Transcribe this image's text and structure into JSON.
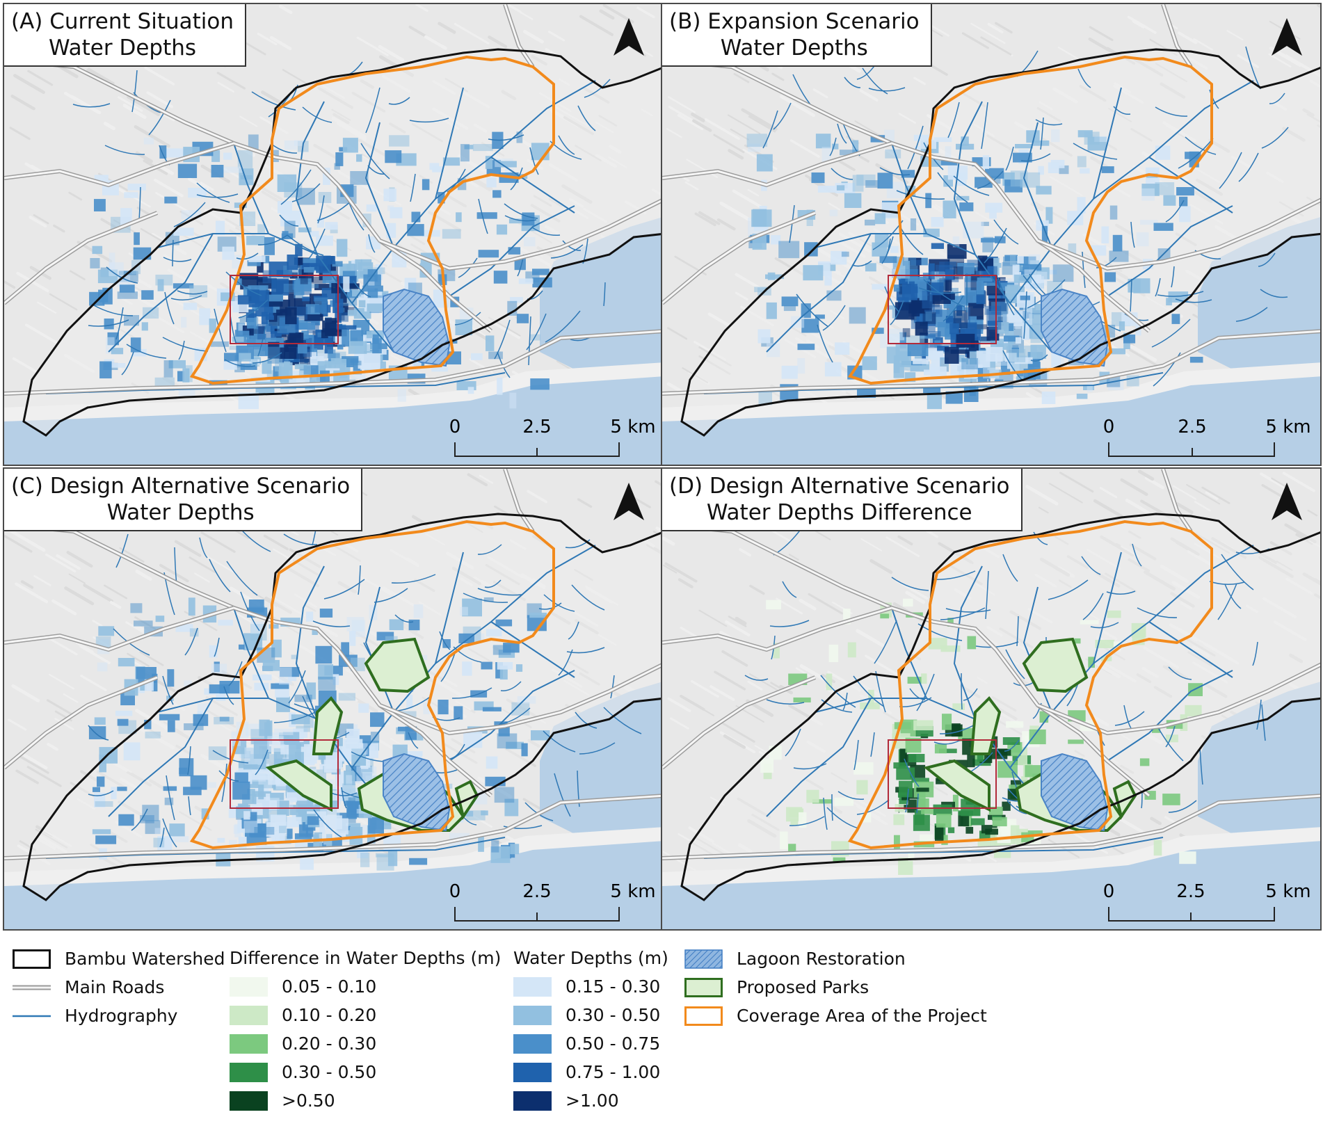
{
  "panels": [
    {
      "id": "A",
      "title_line1": "(A) Current Situation",
      "title_line2": "Water Depths",
      "style": "depth",
      "parks": false
    },
    {
      "id": "B",
      "title_line1": "(B) Expansion Scenario",
      "title_line2": "Water Depths",
      "style": "depth",
      "parks": false
    },
    {
      "id": "C",
      "title_line1": "(C) Design Alternative Scenario",
      "title_line2": "Water Depths",
      "style": "depth",
      "parks": true
    },
    {
      "id": "D",
      "title_line1": "(D) Design Alternative Scenario",
      "title_line2": "Water Depths Difference",
      "style": "diff",
      "parks": true
    }
  ],
  "scale_bar": {
    "labels": [
      "0",
      "2.5",
      "5 km"
    ]
  },
  "legend": {
    "items": [
      {
        "label": "Bambu Watershed",
        "icon": "black-outline-box"
      },
      {
        "label": "Main Roads",
        "icon": "double-grey-line"
      },
      {
        "label": "Hydrography",
        "icon": "blue-line"
      }
    ],
    "difference": {
      "title": "Difference in Water Depths (m)",
      "classes": [
        {
          "label": "0.05 - 0.10",
          "color": "#f1f8ee"
        },
        {
          "label": "0.10 - 0.20",
          "color": "#cde9c6"
        },
        {
          "label": "0.20 - 0.30",
          "color": "#7cc97f"
        },
        {
          "label": "0.30 - 0.50",
          "color": "#2e8f48"
        },
        {
          "label": ">0.50",
          "color": "#0a4220"
        }
      ]
    },
    "depths": {
      "title": "Water Depths (m)",
      "classes": [
        {
          "label": "0.15 - 0.30",
          "color": "#d4e6f7"
        },
        {
          "label": "0.30 - 0.50",
          "color": "#92c0e0"
        },
        {
          "label": "0.50 - 0.75",
          "color": "#4a8fca"
        },
        {
          "label": "0.75 - 1.00",
          "color": "#1f62ad"
        },
        {
          "label": ">1.00",
          "color": "#0c2f6e"
        }
      ]
    },
    "features": [
      {
        "label": "Lagoon Restoration",
        "icon": "hatched-blue"
      },
      {
        "label": "Proposed Parks",
        "icon": "green-outline"
      },
      {
        "label": "Coverage Area of the Project",
        "icon": "orange-outline"
      }
    ]
  },
  "colors": {
    "sea": "#b6cfe6",
    "land": "#e8e8e8",
    "watershed": "#111111",
    "coverage": "#f28a1c",
    "park_edge": "#2f6e1f",
    "park_fill": "#dcefd2",
    "hydro": "#2f78b5",
    "road": "#bbbbbb",
    "inset_box": "#b22a3a"
  }
}
